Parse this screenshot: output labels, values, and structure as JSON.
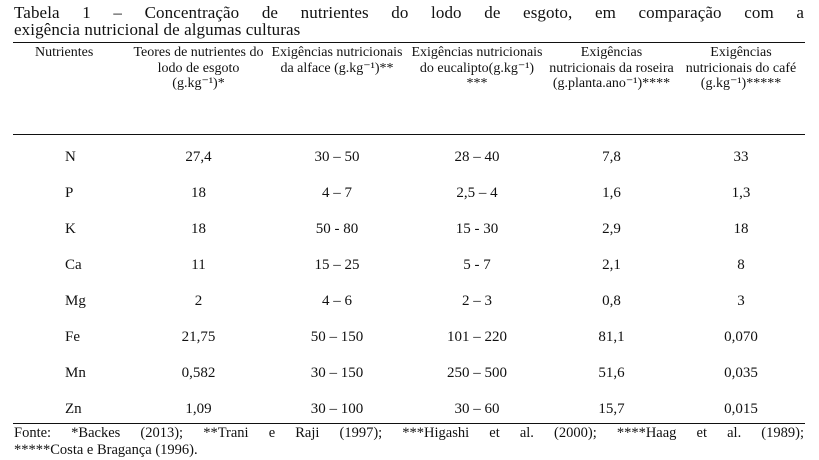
{
  "caption": {
    "line1": "Tabela 1 – Concentração de nutrientes do lodo de esgoto, em comparação com a",
    "line2": "exigência nutricional de algumas culturas"
  },
  "table": {
    "headers": [
      "Nutrientes",
      "Teores de nutrientes do lodo de esgoto (g.kg⁻¹)*",
      "Exigências nutricionais da alface (g.kg⁻¹)**",
      "Exigências nutricionais do eucalipto(g.kg⁻¹) ***",
      "Exigências nutricionais da roseira (g.planta.ano⁻¹)****",
      "Exigências nutricionais do café (g.kg⁻¹)*****"
    ],
    "rows": [
      [
        "N",
        "27,4",
        "30 – 50",
        "28 – 40",
        "7,8",
        "33"
      ],
      [
        "P",
        "18",
        "4 – 7",
        "2,5 – 4",
        "1,6",
        "1,3"
      ],
      [
        "K",
        "18",
        "50 - 80",
        "15 - 30",
        "2,9",
        "18"
      ],
      [
        "Ca",
        "11",
        "15 – 25",
        "5 - 7",
        "2,1",
        "8"
      ],
      [
        "Mg",
        "2",
        "4 – 6",
        "2 – 3",
        "0,8",
        "3"
      ],
      [
        "Fe",
        "21,75",
        "50 – 150",
        "101 – 220",
        "81,1",
        "0,070"
      ],
      [
        "Mn",
        "0,582",
        "30 – 150",
        "250 – 500",
        "51,6",
        "0,035"
      ],
      [
        "Zn",
        "1,09",
        "30 – 100",
        "30 – 60",
        "15,7",
        "0,015"
      ]
    ]
  },
  "footnote": {
    "line1": "Fonte: *Backes (2013); **Trani e Raji (1997); ***Higashi et al. (2000); ****Haag et al. (1989);",
    "line2": "*****Costa e Bragança (1996)."
  }
}
